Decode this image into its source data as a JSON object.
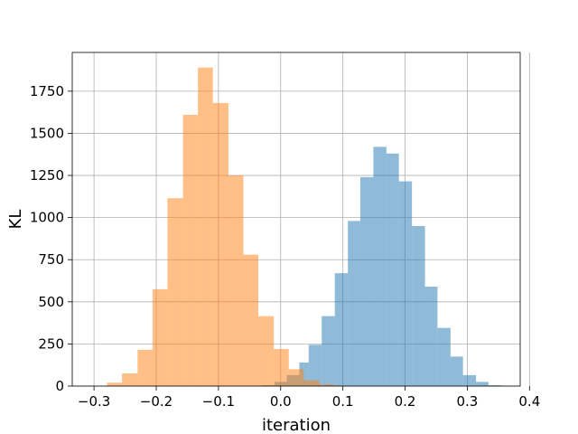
{
  "chart_data": {
    "type": "histogram",
    "title": "",
    "xlabel": "iteration",
    "ylabel": "KL",
    "xlim": [
      -0.335,
      0.385
    ],
    "ylim": [
      0,
      1980
    ],
    "xticks": [
      -0.3,
      -0.2,
      -0.1,
      0.0,
      0.1,
      0.2,
      0.3,
      0.4
    ],
    "xtick_labels": [
      "−0.3",
      "−0.2",
      "−0.1",
      "0.0",
      "0.1",
      "0.2",
      "0.3",
      "0.4"
    ],
    "yticks": [
      0,
      250,
      500,
      750,
      1000,
      1250,
      1500,
      1750
    ],
    "ytick_labels": [
      "0",
      "250",
      "500",
      "750",
      "1000",
      "1250",
      "1500",
      "1750"
    ],
    "grid": true,
    "legend": false,
    "series": [
      {
        "color": "#1f77b4",
        "alpha": 0.5,
        "bins": [
          {
            "x0": -0.05,
            "x1": -0.03,
            "value": 2
          },
          {
            "x0": -0.03,
            "x1": -0.01,
            "value": 5
          },
          {
            "x0": -0.01,
            "x1": 0.01,
            "value": 25
          },
          {
            "x0": 0.01,
            "x1": 0.03,
            "value": 65
          },
          {
            "x0": 0.03,
            "x1": 0.045,
            "value": 140
          },
          {
            "x0": 0.045,
            "x1": 0.066,
            "value": 245
          },
          {
            "x0": 0.066,
            "x1": 0.087,
            "value": 415
          },
          {
            "x0": 0.087,
            "x1": 0.108,
            "value": 670
          },
          {
            "x0": 0.108,
            "x1": 0.128,
            "value": 980
          },
          {
            "x0": 0.128,
            "x1": 0.149,
            "value": 1240
          },
          {
            "x0": 0.149,
            "x1": 0.17,
            "value": 1420
          },
          {
            "x0": 0.17,
            "x1": 0.19,
            "value": 1380
          },
          {
            "x0": 0.19,
            "x1": 0.211,
            "value": 1215
          },
          {
            "x0": 0.211,
            "x1": 0.232,
            "value": 950
          },
          {
            "x0": 0.232,
            "x1": 0.252,
            "value": 590
          },
          {
            "x0": 0.252,
            "x1": 0.273,
            "value": 345
          },
          {
            "x0": 0.273,
            "x1": 0.293,
            "value": 175
          },
          {
            "x0": 0.293,
            "x1": 0.314,
            "value": 65
          },
          {
            "x0": 0.314,
            "x1": 0.334,
            "value": 25
          },
          {
            "x0": 0.334,
            "x1": 0.355,
            "value": 5
          }
        ]
      },
      {
        "color": "#ff7f0e",
        "alpha": 0.5,
        "bins": [
          {
            "x0": -0.279,
            "x1": -0.255,
            "value": 20
          },
          {
            "x0": -0.255,
            "x1": -0.23,
            "value": 75
          },
          {
            "x0": -0.23,
            "x1": -0.206,
            "value": 215
          },
          {
            "x0": -0.206,
            "x1": -0.182,
            "value": 575
          },
          {
            "x0": -0.182,
            "x1": -0.157,
            "value": 1115
          },
          {
            "x0": -0.157,
            "x1": -0.133,
            "value": 1610
          },
          {
            "x0": -0.133,
            "x1": -0.109,
            "value": 1890
          },
          {
            "x0": -0.109,
            "x1": -0.084,
            "value": 1680
          },
          {
            "x0": -0.084,
            "x1": -0.06,
            "value": 1250
          },
          {
            "x0": -0.06,
            "x1": -0.036,
            "value": 780
          },
          {
            "x0": -0.036,
            "x1": -0.011,
            "value": 415
          },
          {
            "x0": -0.011,
            "x1": 0.013,
            "value": 220
          },
          {
            "x0": 0.013,
            "x1": 0.037,
            "value": 100
          },
          {
            "x0": 0.037,
            "x1": 0.062,
            "value": 35
          },
          {
            "x0": 0.062,
            "x1": 0.086,
            "value": 10
          },
          {
            "x0": 0.086,
            "x1": 0.11,
            "value": 2
          }
        ]
      }
    ]
  }
}
